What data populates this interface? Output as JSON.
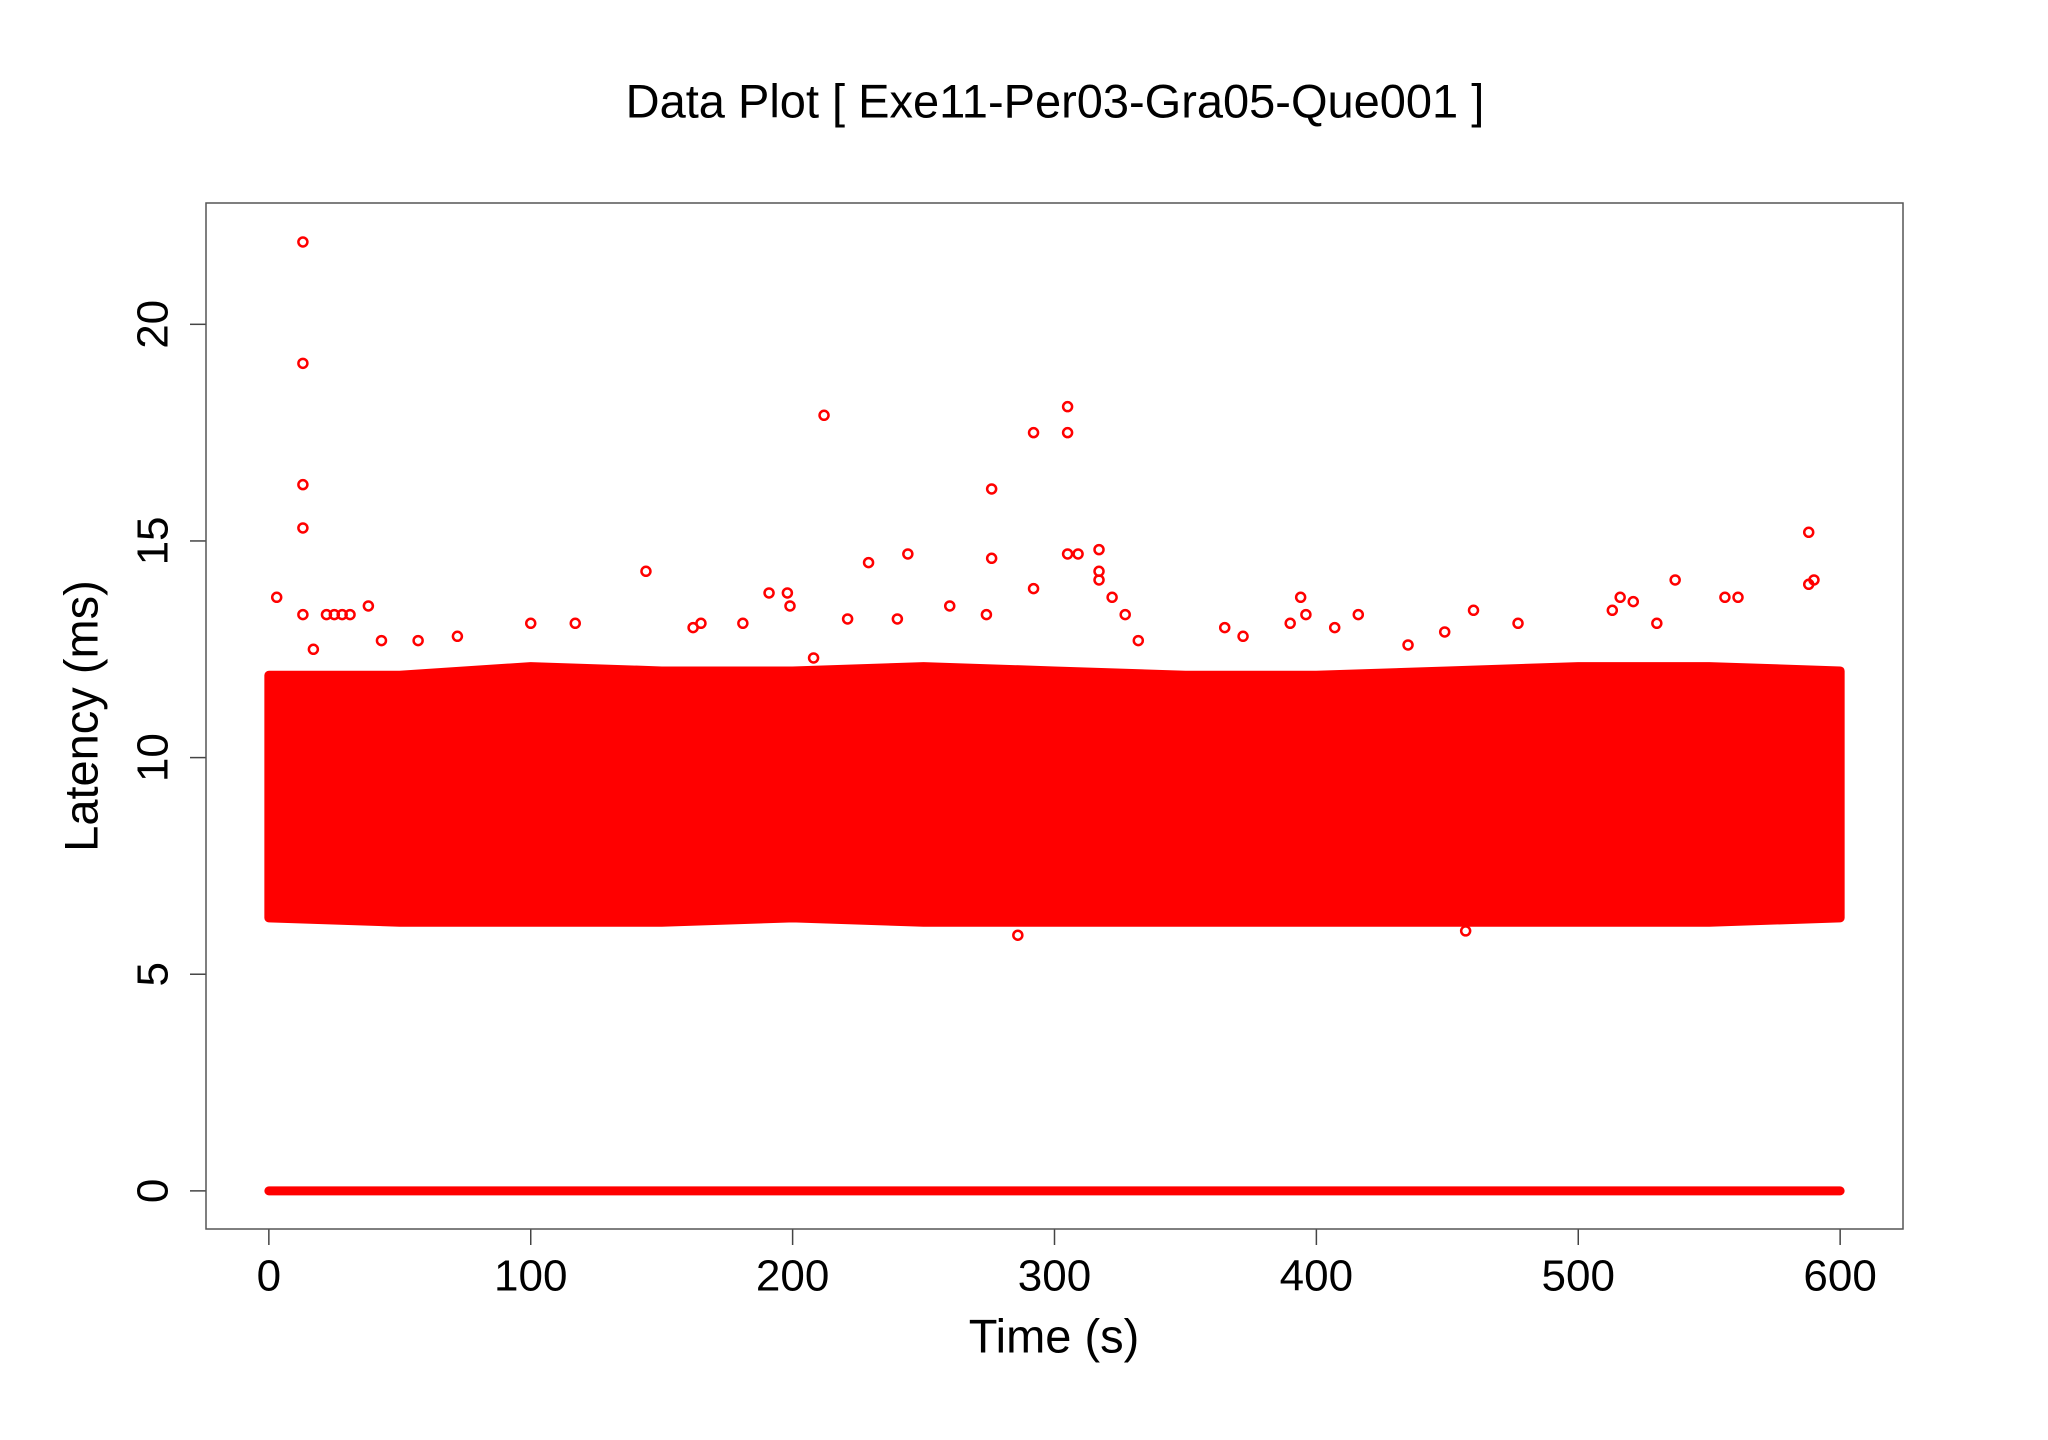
{
  "chart_data": {
    "type": "scatter",
    "title": "Data Plot [ Exe11-Per03-Gra05-Que001 ]",
    "x_label": "Time (s)",
    "y_label": "Latency (ms)",
    "color": "#ff0000",
    "xlim": [
      -24,
      624
    ],
    "ylim": [
      -0.88,
      22.8
    ],
    "xticks": [
      0,
      100,
      200,
      300,
      400,
      500,
      600
    ],
    "yticks": [
      0,
      5,
      10,
      15,
      20
    ],
    "x": [
      13,
      13,
      13,
      13,
      3,
      13,
      17,
      22,
      25,
      28,
      31,
      38,
      43,
      57,
      72,
      100,
      117,
      144,
      162,
      165,
      181,
      191,
      198,
      199,
      208,
      212,
      221,
      229,
      240,
      244,
      260,
      274,
      276,
      276,
      292,
      292,
      305,
      305,
      305,
      309,
      317,
      317,
      317,
      322,
      327,
      332,
      365,
      372,
      390,
      394,
      396,
      407,
      416,
      435,
      449,
      460,
      477,
      513,
      516,
      521,
      530,
      537,
      556,
      561,
      588,
      590,
      588,
      286,
      457
    ],
    "y": [
      21.9,
      19.1,
      16.3,
      15.3,
      13.7,
      13.3,
      12.5,
      13.3,
      13.3,
      13.3,
      13.3,
      13.5,
      12.7,
      12.7,
      12.8,
      13.1,
      13.1,
      14.3,
      13,
      13.1,
      13.1,
      13.8,
      13.8,
      13.5,
      12.3,
      17.9,
      13.2,
      14.5,
      13.2,
      14.7,
      13.5,
      13.3,
      14.6,
      16.2,
      17.5,
      13.9,
      18.1,
      17.5,
      14.7,
      14.7,
      14.8,
      14.1,
      14.3,
      13.7,
      13.3,
      12.7,
      13,
      12.8,
      13.1,
      13.7,
      13.3,
      13,
      13.3,
      12.6,
      12.9,
      13.4,
      13.1,
      13.4,
      13.7,
      13.6,
      13.1,
      14.1,
      13.7,
      13.7,
      15.2,
      14.1,
      14,
      5.9,
      6.0
    ],
    "bands": [
      {
        "x": [
          0,
          50,
          100,
          150,
          200,
          250,
          300,
          350,
          400,
          450,
          500,
          550,
          600
        ],
        "low": [
          6.3,
          6.2,
          6.2,
          6.2,
          6.3,
          6.2,
          6.2,
          6.2,
          6.2,
          6.2,
          6.2,
          6.2,
          6.3
        ],
        "high": [
          11.9,
          11.9,
          12.1,
          12,
          12,
          12.1,
          12,
          11.9,
          11.9,
          12,
          12.1,
          12.1,
          12
        ]
      },
      {
        "x": [
          0,
          600
        ],
        "low": [
          0,
          0
        ],
        "high": [
          0,
          0
        ]
      }
    ]
  }
}
